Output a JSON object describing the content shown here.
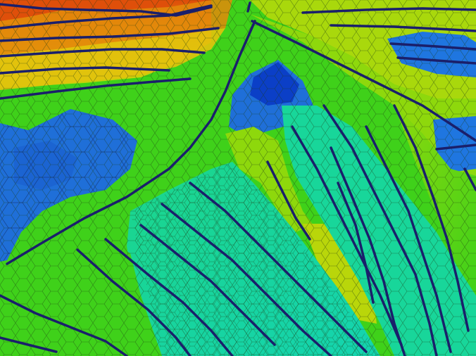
{
  "image": {
    "palette": {
      "deep_blue": "#0b3fc7",
      "blue": "#1f6fd8",
      "cyan_green": "#18d69a",
      "green": "#3fd11a",
      "lime": "#8ed80c",
      "yellow_green": "#b9d60a",
      "yellow": "#e2c20c",
      "orange": "#e38a0b",
      "red_orange": "#df4f0a",
      "fracture_line": "#1a1f6b",
      "cell_edge": "#1b3a12"
    },
    "regions": [
      {
        "name": "top-red-band",
        "color_key": "red_orange"
      },
      {
        "name": "top-orange-band",
        "color_key": "orange"
      },
      {
        "name": "top-yellow-band",
        "color_key": "yellow"
      },
      {
        "name": "left-blue-zone",
        "color_key": "blue"
      },
      {
        "name": "center-blue-zone",
        "color_key": "deep_blue"
      },
      {
        "name": "right-blue-zone",
        "color_key": "blue"
      },
      {
        "name": "lower-cyan-fan",
        "color_key": "cyan_green"
      },
      {
        "name": "green-background",
        "color_key": "green"
      }
    ]
  }
}
